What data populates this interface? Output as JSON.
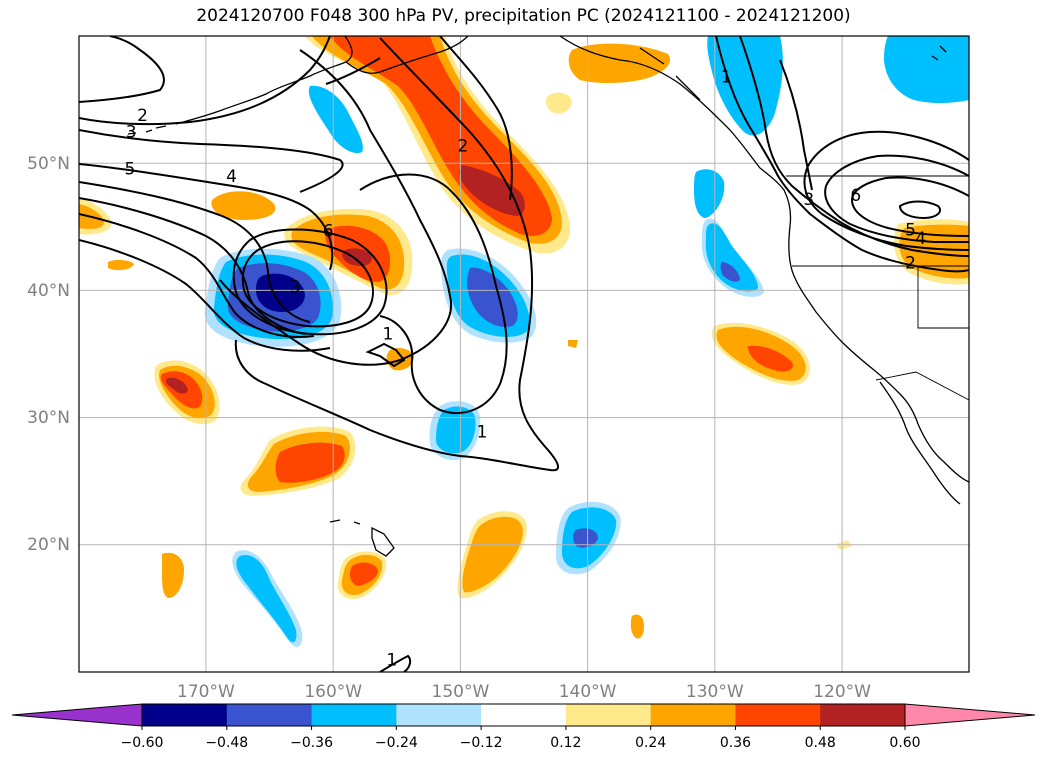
{
  "title": "2024120700 F048 300 hPa PV, precipitation PC (2024121100 - 2024121200)",
  "map": {
    "lon_range": [
      -180,
      -110
    ],
    "lat_range": [
      10,
      60
    ],
    "lon_ticks": [
      {
        "lon": -170,
        "label": "170°W"
      },
      {
        "lon": -160,
        "label": "160°W"
      },
      {
        "lon": -150,
        "label": "150°W"
      },
      {
        "lon": -140,
        "label": "140°W"
      },
      {
        "lon": -130,
        "label": "130°W"
      },
      {
        "lon": -120,
        "label": "120°W"
      }
    ],
    "lat_ticks": [
      {
        "lat": 50,
        "label": "50°N"
      },
      {
        "lat": 40,
        "label": "40°N"
      },
      {
        "lat": 30,
        "label": "30°N"
      },
      {
        "lat": 20,
        "label": "20°N"
      }
    ],
    "gridlines": true,
    "contour_color": "#000000",
    "pv_contour_labels": [
      {
        "text": "2",
        "lon": -175,
        "lat": 53.8
      },
      {
        "text": "3",
        "lon": -175.9,
        "lat": 52.5
      },
      {
        "text": "5",
        "lon": -176,
        "lat": 49.6
      },
      {
        "text": "4",
        "lon": -168,
        "lat": 49
      },
      {
        "text": "6",
        "lon": -160.4,
        "lat": 44.7
      },
      {
        "text": "3",
        "lon": -163,
        "lat": 40.3
      },
      {
        "text": "2",
        "lon": -149.8,
        "lat": 51.4
      },
      {
        "text": "1",
        "lon": -155.7,
        "lat": 36.6
      },
      {
        "text": "1",
        "lon": -148.3,
        "lat": 28.9
      },
      {
        "text": "1",
        "lon": -129.1,
        "lat": 56.8
      },
      {
        "text": "6",
        "lon": -118.9,
        "lat": 47.5
      },
      {
        "text": "3",
        "lon": -122.6,
        "lat": 47.2
      },
      {
        "text": "5",
        "lon": -114.6,
        "lat": 44.8
      },
      {
        "text": "4",
        "lon": -113.8,
        "lat": 44.1
      },
      {
        "text": "2",
        "lon": -114.6,
        "lat": 42.2
      },
      {
        "text": "1",
        "lon": -155.4,
        "lat": 11.0
      }
    ]
  },
  "colorbar": {
    "ticks": [
      "−0.60",
      "−0.48",
      "−0.36",
      "−0.24",
      "−0.12",
      "0.12",
      "0.24",
      "0.36",
      "0.48",
      "0.60"
    ],
    "colors": [
      "#9932cc",
      "#00008b",
      "#3a54cf",
      "#00bfff",
      "#b0e2ff",
      "#ffffff",
      "#ffe98a",
      "#ffa500",
      "#ff4500",
      "#b22222",
      "#ff88aa"
    ],
    "extend": "both"
  }
}
